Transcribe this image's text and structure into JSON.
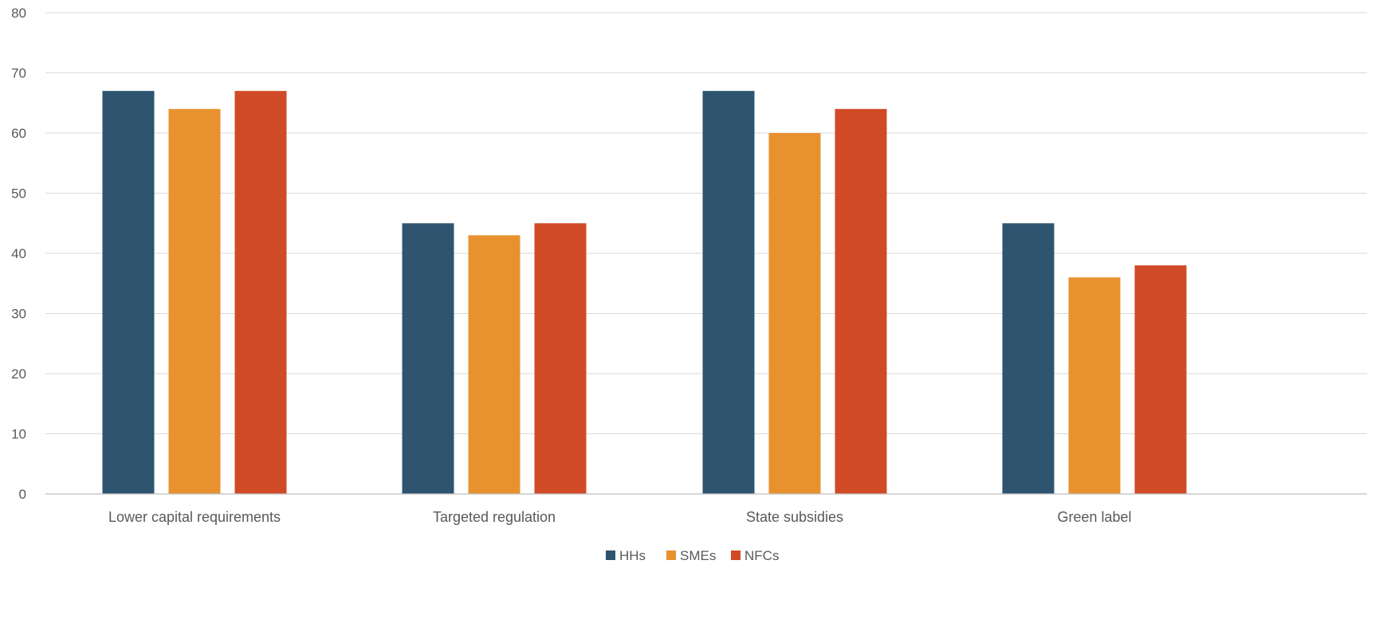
{
  "chart_data": {
    "type": "bar",
    "title": "",
    "xlabel": "",
    "ylabel": "",
    "categories": [
      "Lower capital requirements",
      "Targeted regulation",
      "State subsidies",
      "Green label"
    ],
    "series": [
      {
        "name": "HHs",
        "color": "#2e5470",
        "values": [
          67,
          45,
          67,
          45
        ]
      },
      {
        "name": "SMEs",
        "color": "#e8922f",
        "values": [
          64,
          43,
          60,
          36
        ]
      },
      {
        "name": "NFCs",
        "color": "#d14a27",
        "values": [
          67,
          45,
          64,
          38
        ]
      }
    ],
    "ylim": [
      0,
      80
    ],
    "yticks": [
      0,
      10,
      20,
      30,
      40,
      50,
      60,
      70,
      80
    ],
    "grid": true,
    "legend_position": "bottom-center"
  }
}
